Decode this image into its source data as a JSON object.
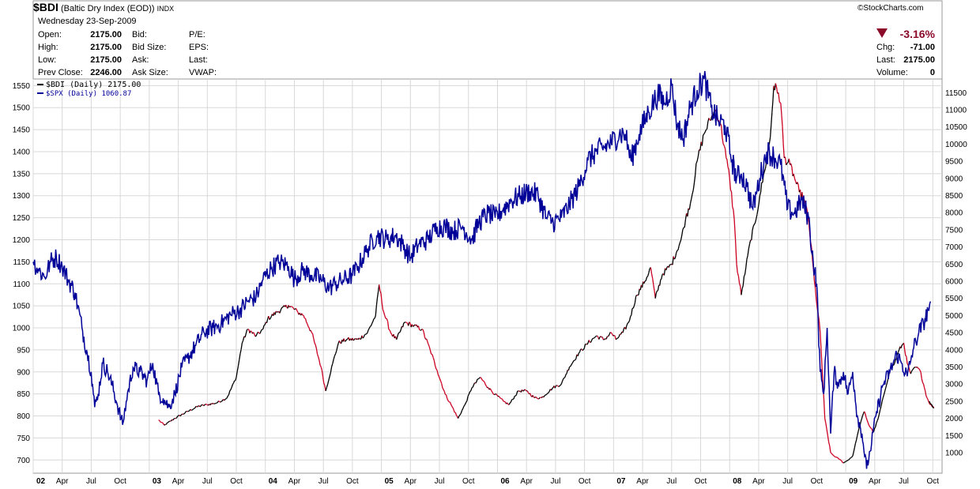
{
  "header": {
    "symbol": "$BDI",
    "name": "(Baltic Dry Index (EOD))",
    "exchange": "INDX",
    "brand": "©StockCharts.com",
    "date": "Wednesday  23-Sep-2009",
    "left_fields": [
      {
        "label": "Open:",
        "value": "2175.00"
      },
      {
        "label": "High:",
        "value": "2175.00"
      },
      {
        "label": "Low:",
        "value": "2175.00"
      },
      {
        "label": "Prev Close:",
        "value": "2246.00"
      }
    ],
    "mid_labels": [
      "Bid:",
      "Bid Size:",
      "Ask:",
      "Ask Size:"
    ],
    "right_labels": [
      "P/E:",
      "EPS:",
      "Last:",
      "VWAP:"
    ],
    "change_pct": "-3.16%",
    "far_right": [
      {
        "label": "Chg:",
        "value": "-71.00"
      },
      {
        "label": "Last:",
        "value": "2175.00"
      },
      {
        "label": "Volume:",
        "value": "0"
      }
    ]
  },
  "colors": {
    "bdi_up": "#000000",
    "bdi_down": "#cc0022",
    "spx": "#000099",
    "grid": "#d8d8d8",
    "down_arrow": "#8b0a2a",
    "change_text": "#8b0a2a"
  },
  "chart_data": {
    "type": "line",
    "x_ticks": [
      {
        "label": "02",
        "major": true
      },
      {
        "label": "Apr"
      },
      {
        "label": "Jul"
      },
      {
        "label": "Oct"
      },
      {
        "label": "03",
        "major": true
      },
      {
        "label": "Apr"
      },
      {
        "label": "Jul"
      },
      {
        "label": "Oct"
      },
      {
        "label": "04",
        "major": true
      },
      {
        "label": "Apr"
      },
      {
        "label": "Jul"
      },
      {
        "label": "Oct"
      },
      {
        "label": "05",
        "major": true
      },
      {
        "label": "Apr"
      },
      {
        "label": "Jul"
      },
      {
        "label": "Oct"
      },
      {
        "label": "06",
        "major": true
      },
      {
        "label": "Apr"
      },
      {
        "label": "Jul"
      },
      {
        "label": "Oct"
      },
      {
        "label": "07",
        "major": true
      },
      {
        "label": "Apr"
      },
      {
        "label": "Jul"
      },
      {
        "label": "Oct"
      },
      {
        "label": "08",
        "major": true
      },
      {
        "label": "Apr"
      },
      {
        "label": "Jul"
      },
      {
        "label": "Oct"
      },
      {
        "label": "09",
        "major": true
      },
      {
        "label": "Apr"
      },
      {
        "label": "Jul"
      },
      {
        "label": "Oct"
      }
    ],
    "left_axis": {
      "min": 670,
      "max": 1565,
      "ticks": [
        700,
        750,
        800,
        850,
        900,
        950,
        1000,
        1050,
        1100,
        1150,
        1200,
        1250,
        1300,
        1350,
        1400,
        1450,
        1500,
        1550
      ]
    },
    "right_axis": {
      "min": 400,
      "max": 11900,
      "ticks": [
        1000,
        1500,
        2000,
        2500,
        3000,
        3500,
        4000,
        4500,
        5000,
        5500,
        6000,
        6500,
        7000,
        7500,
        8000,
        8500,
        9000,
        9500,
        10000,
        10500,
        11000,
        11500
      ]
    },
    "grid": true,
    "legend_position": "top-left",
    "series": [
      {
        "name": "$BDI (Daily) 2175.00",
        "axis": "right",
        "points": [
          [
            2003.08,
            1950
          ],
          [
            2003.13,
            1800
          ],
          [
            2003.22,
            2000
          ],
          [
            2003.33,
            2200
          ],
          [
            2003.42,
            2350
          ],
          [
            2003.5,
            2400
          ],
          [
            2003.58,
            2450
          ],
          [
            2003.67,
            2600
          ],
          [
            2003.75,
            3200
          ],
          [
            2003.8,
            4200
          ],
          [
            2003.85,
            4600
          ],
          [
            2003.92,
            4400
          ],
          [
            2003.98,
            4600
          ],
          [
            2004.02,
            4900
          ],
          [
            2004.1,
            5100
          ],
          [
            2004.2,
            5300
          ],
          [
            2004.28,
            5100
          ],
          [
            2004.33,
            5000
          ],
          [
            2004.4,
            4500
          ],
          [
            2004.48,
            3500
          ],
          [
            2004.52,
            2800
          ],
          [
            2004.58,
            3600
          ],
          [
            2004.63,
            4200
          ],
          [
            2004.7,
            4300
          ],
          [
            2004.8,
            4300
          ],
          [
            2004.88,
            4500
          ],
          [
            2004.95,
            5000
          ],
          [
            2004.98,
            5900
          ],
          [
            2005.02,
            5100
          ],
          [
            2005.08,
            4500
          ],
          [
            2005.13,
            4300
          ],
          [
            2005.2,
            4800
          ],
          [
            2005.28,
            4700
          ],
          [
            2005.35,
            4600
          ],
          [
            2005.42,
            4000
          ],
          [
            2005.48,
            3400
          ],
          [
            2005.55,
            2700
          ],
          [
            2005.6,
            2400
          ],
          [
            2005.66,
            2000
          ],
          [
            2005.72,
            2400
          ],
          [
            2005.78,
            2900
          ],
          [
            2005.85,
            3200
          ],
          [
            2005.92,
            2900
          ],
          [
            2005.98,
            2700
          ],
          [
            2006.05,
            2500
          ],
          [
            2006.1,
            2400
          ],
          [
            2006.18,
            2800
          ],
          [
            2006.25,
            2800
          ],
          [
            2006.32,
            2600
          ],
          [
            2006.38,
            2600
          ],
          [
            2006.48,
            2900
          ],
          [
            2006.55,
            3000
          ],
          [
            2006.62,
            3500
          ],
          [
            2006.7,
            3900
          ],
          [
            2006.78,
            4200
          ],
          [
            2006.85,
            4400
          ],
          [
            2006.92,
            4300
          ],
          [
            2006.98,
            4500
          ],
          [
            2007.02,
            4300
          ],
          [
            2007.08,
            4500
          ],
          [
            2007.13,
            4800
          ],
          [
            2007.2,
            5600
          ],
          [
            2007.27,
            6000
          ],
          [
            2007.32,
            6400
          ],
          [
            2007.36,
            5500
          ],
          [
            2007.42,
            6200
          ],
          [
            2007.5,
            6500
          ],
          [
            2007.58,
            7200
          ],
          [
            2007.62,
            7800
          ],
          [
            2007.67,
            8400
          ],
          [
            2007.72,
            9500
          ],
          [
            2007.78,
            10300
          ],
          [
            2007.83,
            10700
          ],
          [
            2007.88,
            11000
          ],
          [
            2007.92,
            10600
          ],
          [
            2007.97,
            9600
          ],
          [
            2008.0,
            9000
          ],
          [
            2008.04,
            7800
          ],
          [
            2008.06,
            6500
          ],
          [
            2008.1,
            5600
          ],
          [
            2008.14,
            6400
          ],
          [
            2008.18,
            7200
          ],
          [
            2008.22,
            7700
          ],
          [
            2008.26,
            8500
          ],
          [
            2008.3,
            9200
          ],
          [
            2008.35,
            10200
          ],
          [
            2008.38,
            11700
          ],
          [
            2008.42,
            11500
          ],
          [
            2008.44,
            11200
          ],
          [
            2008.47,
            9600
          ],
          [
            2008.52,
            9400
          ],
          [
            2008.56,
            9000
          ],
          [
            2008.6,
            8600
          ],
          [
            2008.64,
            8400
          ],
          [
            2008.68,
            7800
          ],
          [
            2008.73,
            6000
          ],
          [
            2008.78,
            4500
          ],
          [
            2008.82,
            2000
          ],
          [
            2008.87,
            1000
          ],
          [
            2008.9,
            900
          ],
          [
            2008.95,
            800
          ],
          [
            2008.98,
            700
          ],
          [
            2009.02,
            780
          ],
          [
            2009.06,
            900
          ],
          [
            2009.1,
            1500
          ],
          [
            2009.13,
            1900
          ],
          [
            2009.16,
            2200
          ],
          [
            2009.2,
            1800
          ],
          [
            2009.24,
            1600
          ],
          [
            2009.28,
            2000
          ],
          [
            2009.33,
            2700
          ],
          [
            2009.38,
            3400
          ],
          [
            2009.42,
            3600
          ],
          [
            2009.46,
            4000
          ],
          [
            2009.5,
            4200
          ],
          [
            2009.53,
            3600
          ],
          [
            2009.56,
            3300
          ],
          [
            2009.6,
            3500
          ],
          [
            2009.64,
            3400
          ],
          [
            2009.67,
            3000
          ],
          [
            2009.7,
            2600
          ],
          [
            2009.73,
            2400
          ],
          [
            2009.76,
            2300
          ],
          [
            2009.72,
            2500
          ]
        ]
      },
      {
        "name": "$SPX (Daily) 1060.87",
        "axis": "left",
        "points": [
          [
            2002.0,
            1150
          ],
          [
            2002.05,
            1130
          ],
          [
            2002.1,
            1115
          ],
          [
            2002.15,
            1150
          ],
          [
            2002.2,
            1160
          ],
          [
            2002.25,
            1140
          ],
          [
            2002.3,
            1110
          ],
          [
            2002.36,
            1080
          ],
          [
            2002.42,
            1000
          ],
          [
            2002.46,
            950
          ],
          [
            2002.5,
            900
          ],
          [
            2002.53,
            820
          ],
          [
            2002.56,
            850
          ],
          [
            2002.6,
            920
          ],
          [
            2002.64,
            900
          ],
          [
            2002.68,
            870
          ],
          [
            2002.72,
            830
          ],
          [
            2002.77,
            780
          ],
          [
            2002.82,
            860
          ],
          [
            2002.86,
            910
          ],
          [
            2002.92,
            900
          ],
          [
            2002.98,
            880
          ],
          [
            2003.03,
            920
          ],
          [
            2003.08,
            850
          ],
          [
            2003.12,
            840
          ],
          [
            2003.17,
            820
          ],
          [
            2003.22,
            850
          ],
          [
            2003.28,
            910
          ],
          [
            2003.33,
            930
          ],
          [
            2003.4,
            960
          ],
          [
            2003.47,
            990
          ],
          [
            2003.55,
            1000
          ],
          [
            2003.62,
            1010
          ],
          [
            2003.7,
            1030
          ],
          [
            2003.78,
            1040
          ],
          [
            2003.85,
            1060
          ],
          [
            2003.92,
            1070
          ],
          [
            2003.98,
            1110
          ],
          [
            2004.05,
            1135
          ],
          [
            2004.12,
            1150
          ],
          [
            2004.2,
            1140
          ],
          [
            2004.25,
            1110
          ],
          [
            2004.32,
            1130
          ],
          [
            2004.4,
            1120
          ],
          [
            2004.48,
            1110
          ],
          [
            2004.55,
            1090
          ],
          [
            2004.6,
            1100
          ],
          [
            2004.68,
            1110
          ],
          [
            2004.75,
            1120
          ],
          [
            2004.8,
            1140
          ],
          [
            2004.88,
            1180
          ],
          [
            2004.96,
            1210
          ],
          [
            2005.05,
            1200
          ],
          [
            2005.12,
            1210
          ],
          [
            2005.18,
            1190
          ],
          [
            2005.25,
            1160
          ],
          [
            2005.32,
            1190
          ],
          [
            2005.4,
            1200
          ],
          [
            2005.48,
            1230
          ],
          [
            2005.55,
            1230
          ],
          [
            2005.62,
            1220
          ],
          [
            2005.7,
            1230
          ],
          [
            2005.78,
            1200
          ],
          [
            2005.84,
            1240
          ],
          [
            2005.92,
            1260
          ],
          [
            2005.98,
            1250
          ],
          [
            2006.05,
            1270
          ],
          [
            2006.12,
            1290
          ],
          [
            2006.2,
            1300
          ],
          [
            2006.28,
            1310
          ],
          [
            2006.35,
            1300
          ],
          [
            2006.42,
            1250
          ],
          [
            2006.48,
            1240
          ],
          [
            2006.55,
            1250
          ],
          [
            2006.62,
            1280
          ],
          [
            2006.7,
            1320
          ],
          [
            2006.78,
            1380
          ],
          [
            2006.85,
            1400
          ],
          [
            2006.92,
            1410
          ],
          [
            2006.98,
            1420
          ],
          [
            2007.05,
            1440
          ],
          [
            2007.1,
            1440
          ],
          [
            2007.15,
            1380
          ],
          [
            2007.22,
            1440
          ],
          [
            2007.3,
            1490
          ],
          [
            2007.38,
            1530
          ],
          [
            2007.44,
            1510
          ],
          [
            2007.5,
            1550
          ],
          [
            2007.55,
            1460
          ],
          [
            2007.6,
            1430
          ],
          [
            2007.66,
            1500
          ],
          [
            2007.72,
            1540
          ],
          [
            2007.78,
            1565
          ],
          [
            2007.84,
            1500
          ],
          [
            2007.9,
            1470
          ],
          [
            2007.96,
            1460
          ],
          [
            2008.02,
            1380
          ],
          [
            2008.06,
            1340
          ],
          [
            2008.1,
            1350
          ],
          [
            2008.15,
            1320
          ],
          [
            2008.2,
            1270
          ],
          [
            2008.26,
            1340
          ],
          [
            2008.32,
            1400
          ],
          [
            2008.38,
            1390
          ],
          [
            2008.44,
            1370
          ],
          [
            2008.5,
            1270
          ],
          [
            2008.56,
            1260
          ],
          [
            2008.62,
            1290
          ],
          [
            2008.68,
            1250
          ],
          [
            2008.72,
            1150
          ],
          [
            2008.75,
            1100
          ],
          [
            2008.78,
            900
          ],
          [
            2008.81,
            850
          ],
          [
            2008.84,
            1000
          ],
          [
            2008.87,
            760
          ],
          [
            2008.9,
            900
          ],
          [
            2008.94,
            870
          ],
          [
            2008.98,
            900
          ],
          [
            2009.02,
            850
          ],
          [
            2009.06,
            900
          ],
          [
            2009.1,
            800
          ],
          [
            2009.14,
            760
          ],
          [
            2009.18,
            680
          ],
          [
            2009.21,
            720
          ],
          [
            2009.26,
            800
          ],
          [
            2009.32,
            870
          ],
          [
            2009.38,
            900
          ],
          [
            2009.44,
            940
          ],
          [
            2009.48,
            920
          ],
          [
            2009.53,
            890
          ],
          [
            2009.58,
            950
          ],
          [
            2009.63,
            990
          ],
          [
            2009.67,
            1010
          ],
          [
            2009.71,
            1040
          ],
          [
            2009.73,
            1060
          ]
        ]
      }
    ]
  }
}
